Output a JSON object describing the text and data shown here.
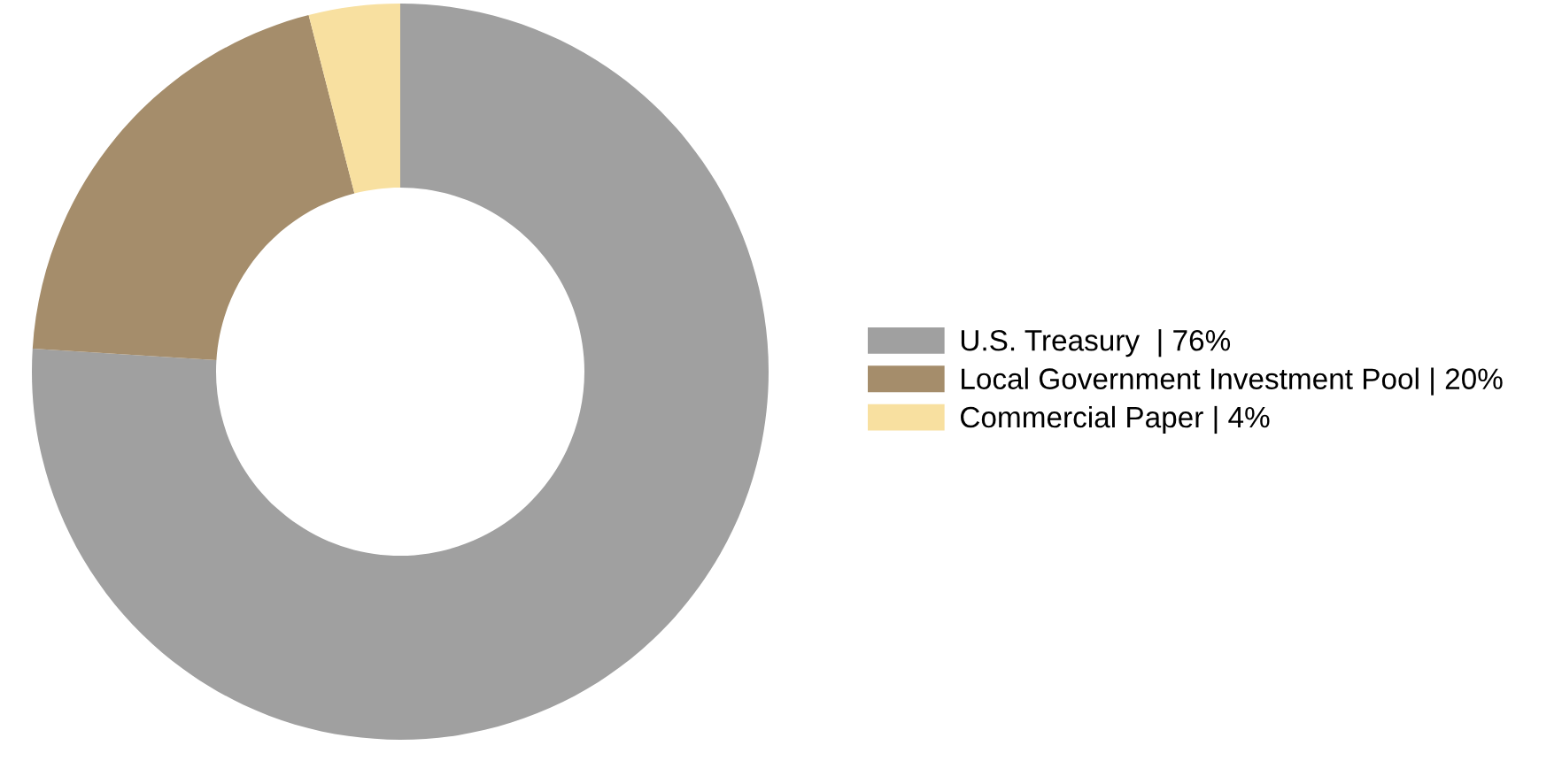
{
  "chart_data": {
    "type": "donut",
    "categories": [
      "U.S. Treasury  | 76%",
      "Local Government Investment Pool | 20%",
      "Commercial Paper | 4%"
    ],
    "values": [
      76,
      20,
      4
    ],
    "colors": [
      "#a0a0a0",
      "#a58d6b",
      "#f8e0a0"
    ],
    "legend": "right"
  }
}
